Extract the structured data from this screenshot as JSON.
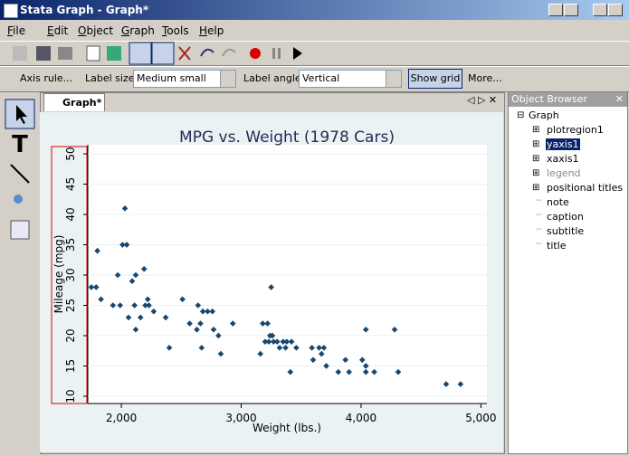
{
  "window": {
    "title": "Stata Graph - Graph*"
  },
  "menu": [
    "File",
    "Edit",
    "Object",
    "Graph",
    "Tools",
    "Help"
  ],
  "contextual_toolbar": {
    "axis_rule": "Axis rule...",
    "label_size_label": "Label size:",
    "label_size": "Medium small",
    "label_angle_label": "Label angle:",
    "label_angle": "Vertical",
    "show_grid": "Show grid",
    "more": "More..."
  },
  "tab": "Graph*",
  "object_browser": {
    "title": "Object Browser",
    "root": "Graph",
    "items": [
      {
        "label": "plotregion1",
        "expandable": true
      },
      {
        "label": "yaxis1",
        "expandable": true,
        "selected": true
      },
      {
        "label": "xaxis1",
        "expandable": true
      },
      {
        "label": "legend",
        "expandable": true,
        "disabled": true
      },
      {
        "label": "positional titles",
        "expandable": true
      },
      {
        "label": "note",
        "expandable": false
      },
      {
        "label": "caption",
        "expandable": false
      },
      {
        "label": "subtitle",
        "expandable": false
      },
      {
        "label": "title",
        "expandable": false
      }
    ]
  },
  "chart_data": {
    "type": "scatter",
    "title": "MPG vs. Weight (1978 Cars)",
    "x_label": "Weight (lbs.)",
    "y_label": "Mileage (mpg)",
    "color": "#1a476f",
    "grid": true,
    "x": [
      1750,
      1790,
      1800,
      1830,
      1930,
      1970,
      1990,
      2010,
      2030,
      2045,
      2060,
      2090,
      2110,
      2120,
      2120,
      2160,
      2190,
      2200,
      2220,
      2230,
      2270,
      2370,
      2400,
      2510,
      2570,
      2630,
      2640,
      2660,
      2670,
      2680,
      2720,
      2760,
      2770,
      2810,
      2830,
      2930,
      3160,
      3180,
      3200,
      3220,
      3230,
      3240,
      3250,
      3260,
      3270,
      3300,
      3320,
      3350,
      3370,
      3380,
      3410,
      3420,
      3460,
      3590,
      3600,
      3650,
      3670,
      3690,
      3710,
      3810,
      3870,
      3900,
      4010,
      4040,
      4040,
      4040,
      4110,
      4280,
      4310,
      4710,
      4830
    ],
    "values": [
      28,
      28,
      34,
      26,
      25,
      30,
      25,
      35,
      41,
      35,
      23,
      29,
      25,
      30,
      21,
      23,
      31,
      25,
      26,
      25,
      24,
      23,
      18,
      26,
      22,
      21,
      25,
      22,
      18,
      24,
      24,
      24,
      21,
      20,
      17,
      22,
      17,
      22,
      19,
      22,
      19,
      20,
      28,
      20,
      19,
      19,
      18,
      19,
      18,
      19,
      14,
      19,
      18,
      18,
      16,
      18,
      17,
      18,
      15,
      14,
      16,
      14,
      16,
      15,
      21,
      14,
      14,
      21,
      14,
      12,
      12
    ],
    "xlim": [
      1720,
      5050
    ],
    "ylim": [
      8.8,
      51.5
    ],
    "xticks": [
      {
        "value": 2000,
        "label": "2,000"
      },
      {
        "value": 3000,
        "label": "3,000"
      },
      {
        "value": 4000,
        "label": "4,000"
      },
      {
        "value": 5000,
        "label": "5,000"
      }
    ],
    "yticks": [
      10,
      15,
      20,
      25,
      30,
      35,
      40,
      45,
      50
    ]
  }
}
